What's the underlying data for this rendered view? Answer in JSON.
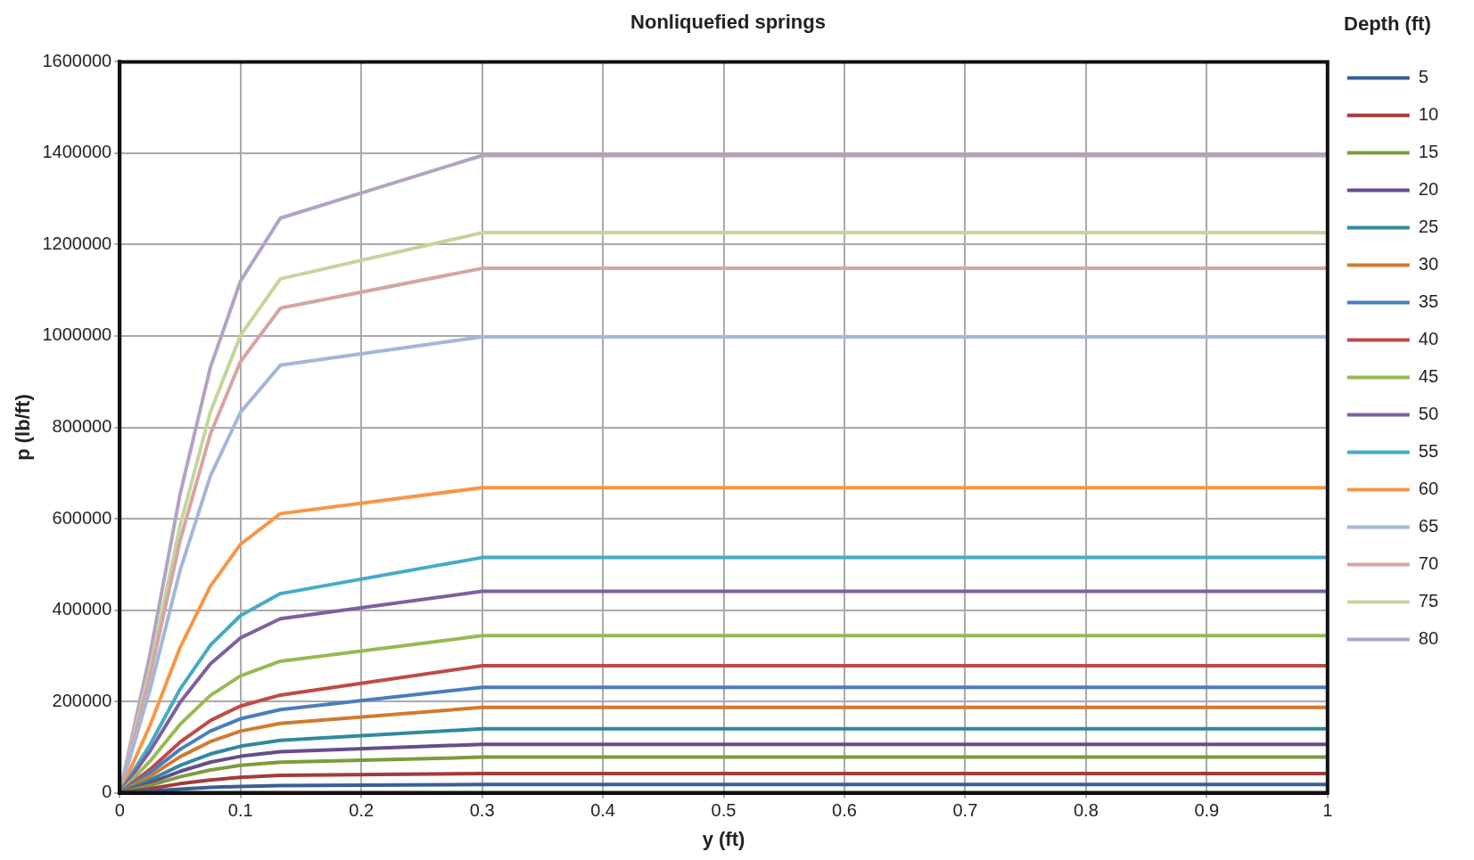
{
  "chart_data": {
    "type": "line",
    "title": "Nonliquefied springs",
    "xlabel": "y (ft)",
    "ylabel": "p (lb/ft)",
    "legend_title": "Depth (ft)",
    "legend": "right",
    "grid": true,
    "marker": "none",
    "line_style": "solid",
    "x": [
      0,
      0.025,
      0.05,
      0.075,
      0.1,
      0.133,
      0.3,
      1
    ],
    "xlim": [
      0,
      1
    ],
    "xticks": [
      0,
      0.1,
      0.2,
      0.3,
      0.4,
      0.5,
      0.6,
      0.7,
      0.8,
      0.9,
      1
    ],
    "ylim": [
      0,
      1600000
    ],
    "yticks": [
      0,
      200000,
      400000,
      600000,
      800000,
      1000000,
      1200000,
      1400000,
      1600000
    ],
    "series": [
      {
        "name": "5",
        "color": "#376092",
        "values": [
          0,
          4000,
          8000,
          12000,
          14000,
          16000,
          18000,
          18000
        ]
      },
      {
        "name": "10",
        "color": "#a33b38",
        "values": [
          0,
          9000,
          20000,
          28000,
          34000,
          38000,
          42000,
          42000
        ]
      },
      {
        "name": "15",
        "color": "#7d9b3d",
        "values": [
          0,
          16000,
          35000,
          50000,
          60000,
          67000,
          78000,
          78000
        ]
      },
      {
        "name": "20",
        "color": "#664d8a",
        "values": [
          0,
          22000,
          47000,
          67000,
          80000,
          90000,
          106000,
          106000
        ]
      },
      {
        "name": "25",
        "color": "#31899f",
        "values": [
          0,
          28000,
          60000,
          85000,
          102000,
          115000,
          140000,
          140000
        ]
      },
      {
        "name": "30",
        "color": "#d07a2e",
        "values": [
          0,
          36000,
          79000,
          112000,
          135000,
          152000,
          187000,
          187000
        ]
      },
      {
        "name": "35",
        "color": "#4a7ebb",
        "values": [
          0,
          44000,
          95000,
          135000,
          162000,
          182000,
          231000,
          231000
        ]
      },
      {
        "name": "40",
        "color": "#be4b48",
        "values": [
          0,
          51000,
          111000,
          158000,
          190000,
          214000,
          278000,
          278000
        ]
      },
      {
        "name": "45",
        "color": "#98b954",
        "values": [
          0,
          69000,
          150000,
          213000,
          256000,
          288000,
          344000,
          344000
        ]
      },
      {
        "name": "50",
        "color": "#7d60a0",
        "values": [
          0,
          91000,
          198000,
          282000,
          339000,
          381000,
          441000,
          441000
        ]
      },
      {
        "name": "55",
        "color": "#46aac5",
        "values": [
          0,
          105000,
          227000,
          323000,
          388000,
          436000,
          515000,
          515000
        ]
      },
      {
        "name": "60",
        "color": "#f79646",
        "values": [
          0,
          147000,
          318000,
          452000,
          544000,
          611000,
          668000,
          668000
        ]
      },
      {
        "name": "65",
        "color": "#a5b6d9",
        "values": [
          0,
          225000,
          487000,
          693000,
          833000,
          936000,
          998000,
          998000
        ]
      },
      {
        "name": "70",
        "color": "#d7a4a3",
        "values": [
          0,
          255000,
          552000,
          785000,
          944000,
          1061000,
          1148000,
          1148000
        ]
      },
      {
        "name": "75",
        "color": "#c3d69b",
        "values": [
          0,
          270000,
          585000,
          833000,
          1001000,
          1125000,
          1226000,
          1226000
        ]
      },
      {
        "name": "80",
        "color": "#b3a2c7",
        "values": [
          0,
          302000,
          654000,
          931000,
          1120000,
          1258000,
          1395000,
          1395000
        ]
      }
    ]
  }
}
